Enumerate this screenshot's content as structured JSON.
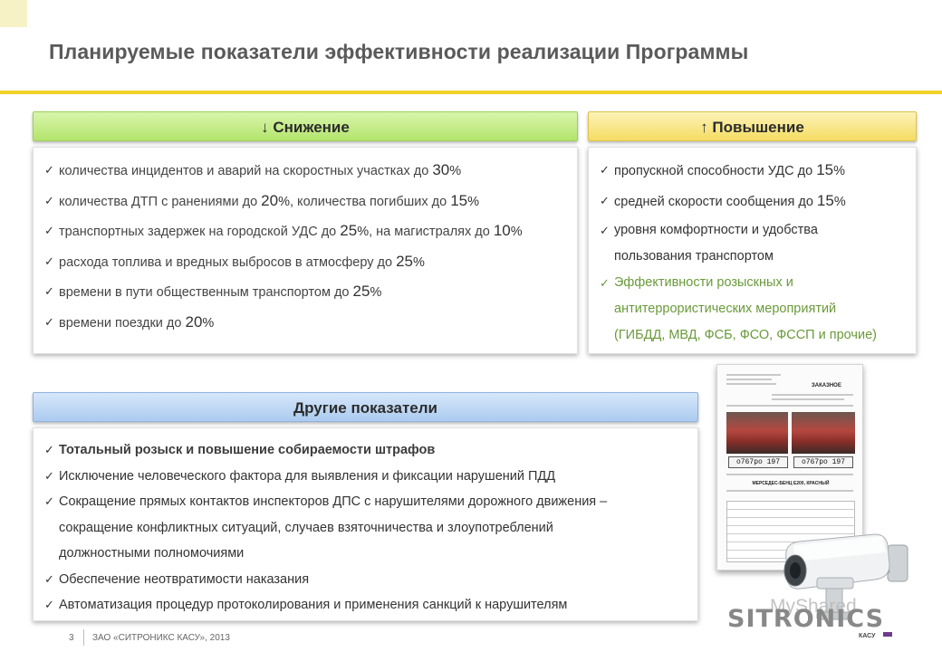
{
  "title": "Планируемые показатели эффективности реализации Программы",
  "reduce": {
    "header": "↓ Снижение",
    "items": [
      {
        "pre": "количества инцидентов и аварий на скоростных участках до ",
        "n1": "30",
        "p1": "%"
      },
      {
        "pre": "количества  ДТП с ранениями до ",
        "n1": "20",
        "p1": "%",
        "mid": ", количества погибших до ",
        "n2": "15",
        "p2": "%"
      },
      {
        "pre": "транспортных задержек на городской УДС до ",
        "n1": "25",
        "p1": "%",
        "mid": ", на магистралях до ",
        "n2": "10",
        "p2": "%"
      },
      {
        "pre": "расхода топлива и вредных выбросов в атмосферу до ",
        "n1": "25",
        "p1": "%"
      },
      {
        "pre": "времени в пути общественным транспортом до ",
        "n1": "25",
        "p1": "%"
      },
      {
        "pre": "времени поездки до ",
        "n1": "20",
        "p1": "%"
      }
    ]
  },
  "increase": {
    "header": "↑ Повышение",
    "items": [
      {
        "pre": "пропускной способности УДС до ",
        "n1": "15",
        "p1": "%"
      },
      {
        "pre": "средней скорости сообщения до ",
        "n1": "15",
        "p1": "%"
      },
      {
        "line1": "уровня комфортности и удобства",
        "line2": "пользования транспортом"
      },
      {
        "line1": "Эффективности розыскных и",
        "line2": "антитеррористических мероприятий",
        "line3": "(ГИБДД, МВД, ФСБ, ФСО, ФССП и прочие)"
      }
    ]
  },
  "other": {
    "header": "Другие показатели",
    "items": [
      {
        "text": "Тотальный розыск и повышение собираемости штрафов"
      },
      {
        "text": "Исключение человеческого фактора для выявления и фиксации нарушений ПДД"
      },
      {
        "line1": "Сокращение прямых контактов инспекторов ДПС с нарушителями дорожного движения –",
        "line2": "сокращение конфликтных ситуаций, случаев взяточничества и злоупотреблений",
        "line3": "должностными полномочиями"
      },
      {
        "text": "Обеспечение неотвратимости наказания"
      },
      {
        "text": "Автоматизация процедур протоколирования и применения санкций к нарушителям"
      }
    ]
  },
  "document_image": {
    "heading": "ЗАКАЗНОЕ",
    "plate_left": "о767ро 197",
    "plate_right": "о767ро 197",
    "caption": "МЕРСЕДЕС-БЕНЦ E200, КРАСНЫЙ"
  },
  "brand": {
    "logo": "SITRONICS",
    "sub": "КАСУ",
    "watermark": "MyShared",
    "accent": "#6d3c8a"
  },
  "footer": {
    "page": "3",
    "text": "ЗАО «СИТРОНИКС КАСУ», 2013"
  },
  "colors": {
    "title_rule": "#f2d227",
    "reduce_header": "#b3e46c",
    "increase_header": "#f4dc63",
    "other_header": "#abcbef",
    "green_text": "#6a9a3a"
  }
}
